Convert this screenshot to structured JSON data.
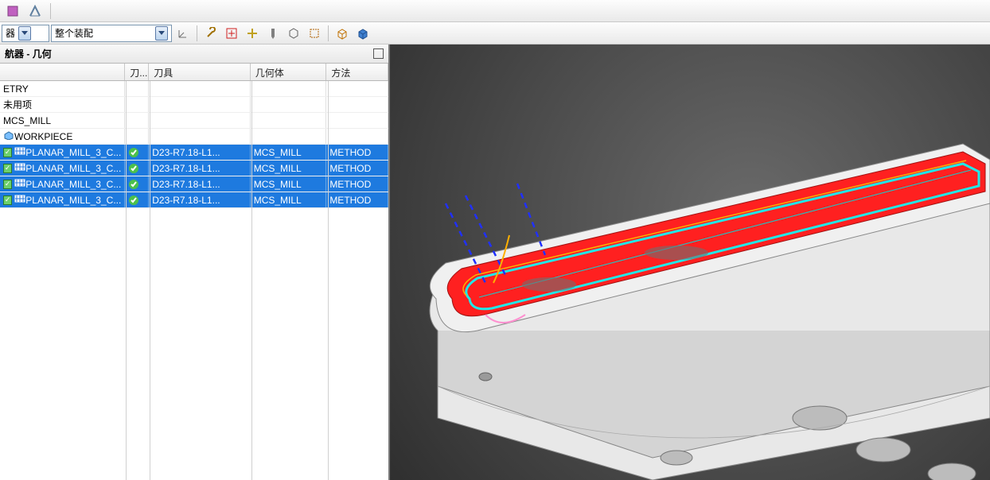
{
  "toolbar": {
    "row1_icons": [
      "filter-icon",
      "wcs-icon"
    ]
  },
  "filter_combo_label": "器",
  "assembly_combo_label": "整个装配",
  "row2_icons": [
    "wcs2-icon",
    "wrench-icon",
    "add-op-red-icon",
    "add-op-icon",
    "tool-icon",
    "hex-icon",
    "rect-select-icon",
    "box-icon",
    "cube-icon"
  ],
  "panel": {
    "title": "航器 - 几何"
  },
  "columns": {
    "name": "",
    "status": "刀...",
    "tool": "刀具",
    "geometry": "几何体",
    "method": "方法"
  },
  "tree": [
    {
      "lvl": 0,
      "name": "ETRY"
    },
    {
      "lvl": 0,
      "name": "未用项"
    },
    {
      "lvl": 0,
      "name": "MCS_MILL"
    },
    {
      "lvl": 1,
      "name": "WORKPIECE",
      "icon": "workpiece"
    },
    {
      "lvl": 2,
      "name": "PLANAR_MILL_3_C...",
      "sel": true,
      "status": "ok",
      "tool": "D23-R7.18-L1...",
      "geo": "MCS_MILL",
      "method": "METHOD"
    },
    {
      "lvl": 2,
      "name": "PLANAR_MILL_3_C...",
      "sel": true,
      "status": "ok",
      "tool": "D23-R7.18-L1...",
      "geo": "MCS_MILL",
      "method": "METHOD"
    },
    {
      "lvl": 2,
      "name": "PLANAR_MILL_3_C...",
      "sel": true,
      "status": "ok",
      "tool": "D23-R7.18-L1...",
      "geo": "MCS_MILL",
      "method": "METHOD"
    },
    {
      "lvl": 2,
      "name": "PLANAR_MILL_3_C...",
      "sel": true,
      "status": "ok",
      "tool": "D23-R7.18-L1...",
      "geo": "MCS_MILL",
      "method": "METHOD"
    }
  ],
  "colors": {
    "selection": "#1e7adf",
    "ok_green": "#4cc04c",
    "part_top": "#ff2020",
    "part_aqua": "#20e8e8",
    "part_body": "#e8e8e8",
    "part_edge": "#888888",
    "path_yellow": "#ffc020",
    "path_pink": "#ff90d0",
    "path_dash": "#2030ff"
  }
}
